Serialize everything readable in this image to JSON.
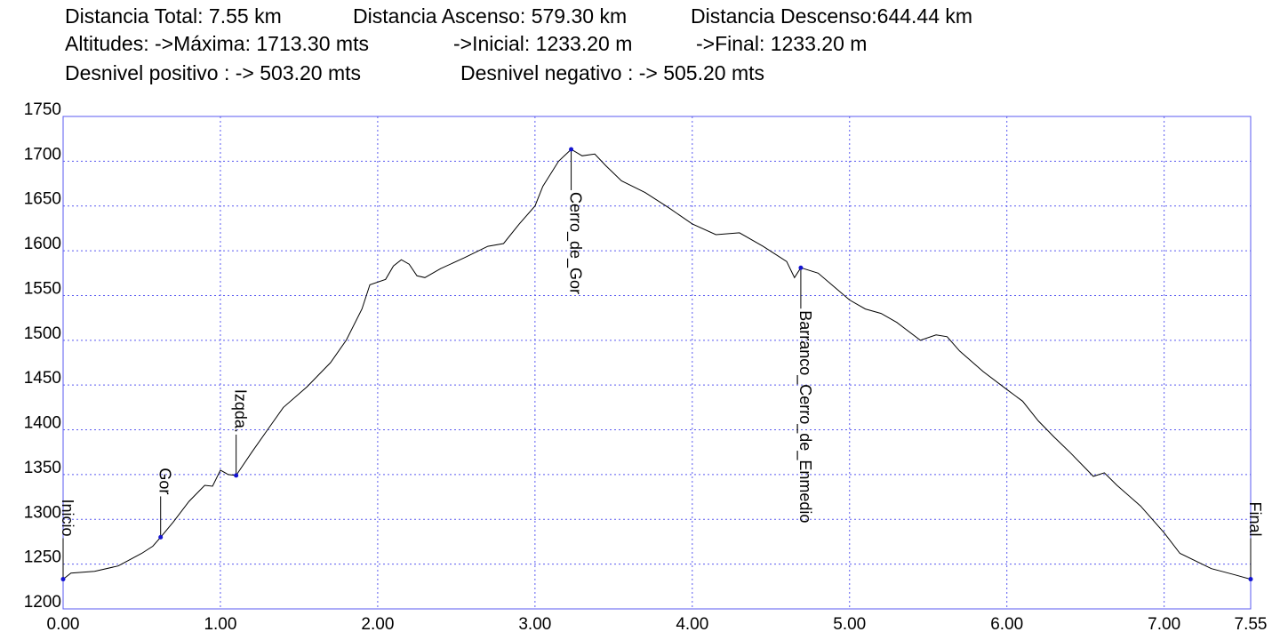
{
  "chart_data": {
    "type": "line",
    "header": [
      [
        "Distancia Total: 7.55 km",
        "Distancia Ascenso: 579.30 km",
        "Distancia Descenso:644.44 km"
      ],
      [
        "Altitudes: ->Máxima: 1713.30 mts",
        "->Inicial: 1233.20 m",
        "->Final: 1233.20 m"
      ],
      [
        "Desnivel positivo : -> 503.20 mts",
        "Desnivel negativo : -> 505.20 mts"
      ]
    ],
    "x": [
      0,
      0.05,
      0.2,
      0.35,
      0.5,
      0.57,
      0.62,
      0.7,
      0.8,
      0.9,
      0.95,
      1.0,
      1.05,
      1.1,
      1.2,
      1.3,
      1.4,
      1.55,
      1.7,
      1.8,
      1.9,
      1.95,
      2.05,
      2.1,
      2.15,
      2.2,
      2.25,
      2.3,
      2.4,
      2.55,
      2.7,
      2.8,
      2.9,
      3.0,
      3.05,
      3.15,
      3.23,
      3.3,
      3.38,
      3.45,
      3.55,
      3.7,
      3.85,
      4.0,
      4.15,
      4.3,
      4.45,
      4.6,
      4.65,
      4.69,
      4.8,
      4.9,
      5.0,
      5.1,
      5.2,
      5.3,
      5.45,
      5.55,
      5.62,
      5.7,
      5.85,
      6.0,
      6.1,
      6.2,
      6.3,
      6.4,
      6.55,
      6.62,
      6.7,
      6.85,
      7.0,
      7.1,
      7.3,
      7.45,
      7.55
    ],
    "values": [
      1233.2,
      1240,
      1242,
      1248,
      1262,
      1270,
      1280,
      1297,
      1320,
      1338,
      1337,
      1355,
      1350,
      1349,
      1375,
      1400,
      1425,
      1448,
      1475,
      1500,
      1535,
      1562,
      1568,
      1583,
      1590,
      1585,
      1572,
      1570,
      1580,
      1592,
      1605,
      1608,
      1630,
      1650,
      1672,
      1700,
      1713.3,
      1706,
      1708,
      1695,
      1678,
      1665,
      1648,
      1630,
      1618,
      1620,
      1605,
      1588,
      1570,
      1581,
      1575,
      1560,
      1545,
      1535,
      1530,
      1520,
      1500,
      1506,
      1504,
      1488,
      1465,
      1445,
      1432,
      1410,
      1392,
      1375,
      1348,
      1352,
      1338,
      1315,
      1285,
      1262,
      1245,
      1238,
      1233.2
    ],
    "color": "#000000",
    "waypoints": [
      {
        "label": "Inicio",
        "x": 0,
        "y": 1233.2
      },
      {
        "label": "Gor",
        "x": 0.62,
        "y": 1280
      },
      {
        "label": "Izqda.",
        "x": 1.1,
        "y": 1349
      },
      {
        "label": "Cerro_de_Gor",
        "x": 3.23,
        "y": 1713.3
      },
      {
        "label": "Barranco_Cerro_de_Enmedio",
        "x": 4.69,
        "y": 1581
      },
      {
        "label": "Final",
        "x": 7.55,
        "y": 1233.2
      }
    ],
    "xlim": [
      0,
      7.55
    ],
    "ylim": [
      1200,
      1750
    ],
    "xticks": [
      {
        "value": 0,
        "label": "0.00"
      },
      {
        "value": 1,
        "label": "1.00"
      },
      {
        "value": 2,
        "label": "2.00"
      },
      {
        "value": 3,
        "label": "3.00"
      },
      {
        "value": 4,
        "label": "4.00"
      },
      {
        "value": 5,
        "label": "5.00"
      },
      {
        "value": 6,
        "label": "6.00"
      },
      {
        "value": 7,
        "label": "7.00"
      },
      {
        "value": 7.55,
        "label": "7.55"
      }
    ],
    "yticks": [
      1200,
      1250,
      1300,
      1350,
      1400,
      1450,
      1500,
      1550,
      1600,
      1650,
      1700,
      1750
    ],
    "grid": true
  }
}
